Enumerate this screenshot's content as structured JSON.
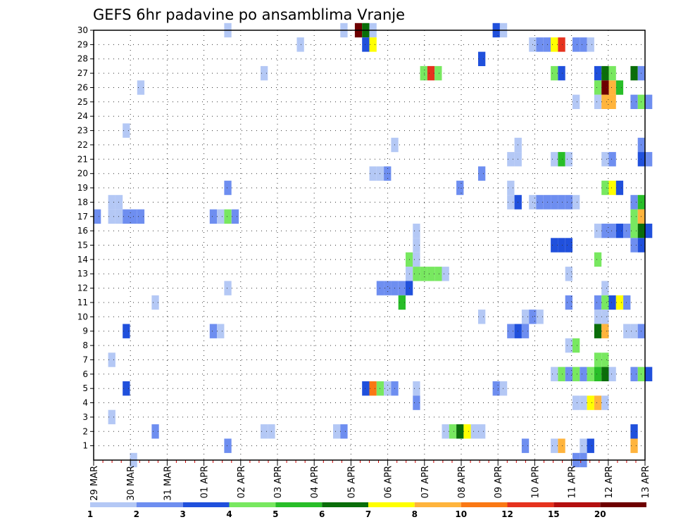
{
  "chart_data": {
    "type": "heatmap",
    "title": "GEFS 6hr padavine po ansamblima Vranje",
    "y_categories": [
      "1",
      "2",
      "3",
      "4",
      "5",
      "6",
      "7",
      "8",
      "9",
      "10",
      "11",
      "12",
      "13",
      "14",
      "15",
      "16",
      "17",
      "18",
      "19",
      "20",
      "21",
      "22",
      "23",
      "24",
      "25",
      "26",
      "27",
      "28",
      "29",
      "30"
    ],
    "x_tick_labels": [
      "29 MAR",
      "30 MAR",
      "31 MAR",
      "01 APR",
      "02 APR",
      "03 APR",
      "04 APR",
      "05 APR",
      "06 APR",
      "07 APR",
      "08 APR",
      "09 APR",
      "10 APR",
      "11 APR",
      "12 APR",
      "13 APR"
    ],
    "x_steps_per_day": 4,
    "grid": true,
    "color_scale": {
      "levels": [
        "1",
        "2",
        "3",
        "4",
        "5",
        "6",
        "7",
        "8",
        "10",
        "12",
        "15",
        "20"
      ],
      "colors": [
        "#b4c8f5",
        "#6e8ef0",
        "#2050dc",
        "#78e860",
        "#28be28",
        "#0a6e0a",
        "#ffff00",
        "#ffb43c",
        "#fa7814",
        "#e6321e",
        "#b40f0f",
        "#6e0000"
      ],
      "placement": "bottom"
    },
    "cells": [
      {
        "m": 30,
        "x": 13.6,
        "c": 1
      },
      {
        "m": 30,
        "x": 17.2,
        "c": 12
      },
      {
        "m": 30,
        "x": 17.4,
        "c": 6
      },
      {
        "m": 30,
        "x": 17.6,
        "c": 1
      },
      {
        "m": 30,
        "x": 21.0,
        "c": 3
      },
      {
        "m": 30,
        "x": 21.2,
        "c": 1
      },
      {
        "m": 30,
        "x": 16.8,
        "c": 1
      },
      {
        "m": 29,
        "x": 15.6,
        "c": 1
      },
      {
        "m": 29,
        "x": 17.4,
        "c": 3
      },
      {
        "m": 29,
        "x": 17.6,
        "c": 7
      },
      {
        "m": 29,
        "x": 22.0,
        "c": 1
      },
      {
        "m": 29,
        "x": 22.2,
        "c": 2
      },
      {
        "m": 29,
        "x": 22.4,
        "c": 2
      },
      {
        "m": 29,
        "x": 22.6,
        "c": 7
      },
      {
        "m": 29,
        "x": 22.8,
        "c": 10
      },
      {
        "m": 29,
        "x": 23.2,
        "c": 2
      },
      {
        "m": 29,
        "x": 23.4,
        "c": 2
      },
      {
        "m": 29,
        "x": 23.6,
        "c": 1
      },
      {
        "m": 28,
        "x": 20.6,
        "c": 3
      },
      {
        "m": 27,
        "x": 14.6,
        "c": 1
      },
      {
        "m": 27,
        "x": 19.0,
        "c": 4
      },
      {
        "m": 27,
        "x": 19.2,
        "c": 10
      },
      {
        "m": 27,
        "x": 19.4,
        "c": 4
      },
      {
        "m": 27,
        "x": 22.6,
        "c": 4
      },
      {
        "m": 27,
        "x": 22.8,
        "c": 3
      },
      {
        "m": 27,
        "x": 23.8,
        "c": 3
      },
      {
        "m": 27,
        "x": 24.0,
        "c": 6
      },
      {
        "m": 27,
        "x": 24.2,
        "c": 4
      },
      {
        "m": 27,
        "x": 24.8,
        "c": 6
      },
      {
        "m": 27,
        "x": 25.0,
        "c": 2
      },
      {
        "m": 26,
        "x": 11.2,
        "c": 1
      },
      {
        "m": 26,
        "x": 23.8,
        "c": 4
      },
      {
        "m": 26,
        "x": 24.0,
        "c": 12
      },
      {
        "m": 26,
        "x": 24.2,
        "c": 8
      },
      {
        "m": 26,
        "x": 24.4,
        "c": 5
      },
      {
        "m": 25,
        "x": 23.2,
        "c": 1
      },
      {
        "m": 25,
        "x": 23.8,
        "c": 1
      },
      {
        "m": 25,
        "x": 24.0,
        "c": 8
      },
      {
        "m": 25,
        "x": 24.2,
        "c": 8
      },
      {
        "m": 25,
        "x": 24.8,
        "c": 2
      },
      {
        "m": 25,
        "x": 25.0,
        "c": 4
      },
      {
        "m": 25,
        "x": 25.2,
        "c": 2
      },
      {
        "m": 23,
        "x": 10.8,
        "c": 1
      },
      {
        "m": 22,
        "x": 18.2,
        "c": 1
      },
      {
        "m": 22,
        "x": 21.6,
        "c": 1
      },
      {
        "m": 22,
        "x": 25.0,
        "c": 2
      },
      {
        "m": 21,
        "x": 21.4,
        "c": 1
      },
      {
        "m": 21,
        "x": 21.6,
        "c": 1
      },
      {
        "m": 21,
        "x": 22.6,
        "c": 1
      },
      {
        "m": 21,
        "x": 22.8,
        "c": 5
      },
      {
        "m": 21,
        "x": 23.0,
        "c": 1
      },
      {
        "m": 21,
        "x": 24.0,
        "c": 1
      },
      {
        "m": 21,
        "x": 24.2,
        "c": 2
      },
      {
        "m": 21,
        "x": 25.0,
        "c": 3
      },
      {
        "m": 21,
        "x": 25.2,
        "c": 2
      },
      {
        "m": 20,
        "x": 17.6,
        "c": 1
      },
      {
        "m": 20,
        "x": 17.8,
        "c": 1
      },
      {
        "m": 20,
        "x": 18.0,
        "c": 2
      },
      {
        "m": 20,
        "x": 20.6,
        "c": 2
      },
      {
        "m": 19,
        "x": 13.6,
        "c": 2
      },
      {
        "m": 19,
        "x": 20.0,
        "c": 2
      },
      {
        "m": 19,
        "x": 21.4,
        "c": 1
      },
      {
        "m": 19,
        "x": 24.0,
        "c": 4
      },
      {
        "m": 19,
        "x": 24.2,
        "c": 7
      },
      {
        "m": 19,
        "x": 24.4,
        "c": 3
      },
      {
        "m": 18,
        "x": 10.4,
        "c": 1
      },
      {
        "m": 18,
        "x": 10.6,
        "c": 1
      },
      {
        "m": 18,
        "x": 21.4,
        "c": 1
      },
      {
        "m": 18,
        "x": 21.6,
        "c": 3
      },
      {
        "m": 18,
        "x": 22.0,
        "c": 1
      },
      {
        "m": 18,
        "x": 22.2,
        "c": 2
      },
      {
        "m": 18,
        "x": 22.4,
        "c": 2
      },
      {
        "m": 18,
        "x": 22.6,
        "c": 2
      },
      {
        "m": 18,
        "x": 22.8,
        "c": 2
      },
      {
        "m": 18,
        "x": 23.0,
        "c": 2
      },
      {
        "m": 18,
        "x": 23.2,
        "c": 1
      },
      {
        "m": 18,
        "x": 24.8,
        "c": 2
      },
      {
        "m": 18,
        "x": 25.0,
        "c": 5
      },
      {
        "m": 17,
        "x": 10.0,
        "c": 2
      },
      {
        "m": 17,
        "x": 10.4,
        "c": 1
      },
      {
        "m": 17,
        "x": 10.6,
        "c": 1
      },
      {
        "m": 17,
        "x": 10.8,
        "c": 2
      },
      {
        "m": 17,
        "x": 11.0,
        "c": 2
      },
      {
        "m": 17,
        "x": 11.2,
        "c": 2
      },
      {
        "m": 17,
        "x": 13.2,
        "c": 2
      },
      {
        "m": 17,
        "x": 13.4,
        "c": 1
      },
      {
        "m": 17,
        "x": 13.6,
        "c": 4
      },
      {
        "m": 17,
        "x": 13.8,
        "c": 2
      },
      {
        "m": 17,
        "x": 24.8,
        "c": 4
      },
      {
        "m": 17,
        "x": 25.0,
        "c": 8
      },
      {
        "m": 16,
        "x": 18.8,
        "c": 1
      },
      {
        "m": 16,
        "x": 23.8,
        "c": 1
      },
      {
        "m": 16,
        "x": 24.0,
        "c": 2
      },
      {
        "m": 16,
        "x": 24.2,
        "c": 2
      },
      {
        "m": 16,
        "x": 24.4,
        "c": 3
      },
      {
        "m": 16,
        "x": 24.6,
        "c": 2
      },
      {
        "m": 16,
        "x": 24.8,
        "c": 4
      },
      {
        "m": 16,
        "x": 25.0,
        "c": 6
      },
      {
        "m": 16,
        "x": 25.2,
        "c": 3
      },
      {
        "m": 15,
        "x": 18.8,
        "c": 1
      },
      {
        "m": 15,
        "x": 22.6,
        "c": 3
      },
      {
        "m": 15,
        "x": 22.8,
        "c": 3
      },
      {
        "m": 15,
        "x": 23.0,
        "c": 3
      },
      {
        "m": 15,
        "x": 24.8,
        "c": 2
      },
      {
        "m": 15,
        "x": 25.0,
        "c": 3
      },
      {
        "m": 14,
        "x": 18.6,
        "c": 4
      },
      {
        "m": 14,
        "x": 18.8,
        "c": 1
      },
      {
        "m": 14,
        "x": 23.8,
        "c": 4
      },
      {
        "m": 13,
        "x": 18.6,
        "c": 1
      },
      {
        "m": 13,
        "x": 18.8,
        "c": 4
      },
      {
        "m": 13,
        "x": 19.0,
        "c": 4
      },
      {
        "m": 13,
        "x": 19.2,
        "c": 4
      },
      {
        "m": 13,
        "x": 19.4,
        "c": 4
      },
      {
        "m": 13,
        "x": 19.6,
        "c": 1
      },
      {
        "m": 13,
        "x": 23.0,
        "c": 1
      },
      {
        "m": 12,
        "x": 13.6,
        "c": 1
      },
      {
        "m": 12,
        "x": 17.8,
        "c": 2
      },
      {
        "m": 12,
        "x": 18.0,
        "c": 2
      },
      {
        "m": 12,
        "x": 18.2,
        "c": 2
      },
      {
        "m": 12,
        "x": 18.4,
        "c": 2
      },
      {
        "m": 12,
        "x": 18.6,
        "c": 3
      },
      {
        "m": 12,
        "x": 24.0,
        "c": 1
      },
      {
        "m": 11,
        "x": 11.6,
        "c": 1
      },
      {
        "m": 11,
        "x": 18.4,
        "c": 5
      },
      {
        "m": 11,
        "x": 23.0,
        "c": 2
      },
      {
        "m": 11,
        "x": 23.8,
        "c": 2
      },
      {
        "m": 11,
        "x": 24.0,
        "c": 4
      },
      {
        "m": 11,
        "x": 24.2,
        "c": 3
      },
      {
        "m": 11,
        "x": 24.4,
        "c": 7
      },
      {
        "m": 11,
        "x": 24.6,
        "c": 2
      },
      {
        "m": 10,
        "x": 20.6,
        "c": 1
      },
      {
        "m": 10,
        "x": 21.8,
        "c": 1
      },
      {
        "m": 10,
        "x": 22.0,
        "c": 2
      },
      {
        "m": 10,
        "x": 22.2,
        "c": 1
      },
      {
        "m": 10,
        "x": 23.8,
        "c": 1
      },
      {
        "m": 10,
        "x": 24.0,
        "c": 1
      },
      {
        "m": 9,
        "x": 10.8,
        "c": 3
      },
      {
        "m": 9,
        "x": 13.2,
        "c": 2
      },
      {
        "m": 9,
        "x": 13.4,
        "c": 1
      },
      {
        "m": 9,
        "x": 21.4,
        "c": 2
      },
      {
        "m": 9,
        "x": 21.6,
        "c": 3
      },
      {
        "m": 9,
        "x": 21.8,
        "c": 2
      },
      {
        "m": 9,
        "x": 23.8,
        "c": 6
      },
      {
        "m": 9,
        "x": 24.0,
        "c": 8
      },
      {
        "m": 9,
        "x": 24.6,
        "c": 1
      },
      {
        "m": 9,
        "x": 24.8,
        "c": 1
      },
      {
        "m": 9,
        "x": 25.0,
        "c": 2
      },
      {
        "m": 8,
        "x": 23.0,
        "c": 1
      },
      {
        "m": 8,
        "x": 23.2,
        "c": 4
      },
      {
        "m": 7,
        "x": 10.4,
        "c": 1
      },
      {
        "m": 7,
        "x": 23.8,
        "c": 4
      },
      {
        "m": 7,
        "x": 24.0,
        "c": 4
      },
      {
        "m": 6,
        "x": 22.6,
        "c": 1
      },
      {
        "m": 6,
        "x": 22.8,
        "c": 4
      },
      {
        "m": 6,
        "x": 23.0,
        "c": 2
      },
      {
        "m": 6,
        "x": 23.2,
        "c": 4
      },
      {
        "m": 6,
        "x": 23.4,
        "c": 2
      },
      {
        "m": 6,
        "x": 23.6,
        "c": 4
      },
      {
        "m": 6,
        "x": 23.8,
        "c": 5
      },
      {
        "m": 6,
        "x": 24.0,
        "c": 6
      },
      {
        "m": 6,
        "x": 24.2,
        "c": 1
      },
      {
        "m": 6,
        "x": 24.8,
        "c": 2
      },
      {
        "m": 6,
        "x": 25.0,
        "c": 4
      },
      {
        "m": 6,
        "x": 25.2,
        "c": 3
      },
      {
        "m": 5,
        "x": 10.8,
        "c": 3
      },
      {
        "m": 5,
        "x": 17.4,
        "c": 3
      },
      {
        "m": 5,
        "x": 17.6,
        "c": 9
      },
      {
        "m": 5,
        "x": 17.8,
        "c": 4
      },
      {
        "m": 5,
        "x": 18.0,
        "c": 1
      },
      {
        "m": 5,
        "x": 18.2,
        "c": 2
      },
      {
        "m": 5,
        "x": 18.8,
        "c": 1
      },
      {
        "m": 5,
        "x": 21.0,
        "c": 2
      },
      {
        "m": 5,
        "x": 21.2,
        "c": 1
      },
      {
        "m": 4,
        "x": 18.8,
        "c": 2
      },
      {
        "m": 4,
        "x": 23.2,
        "c": 1
      },
      {
        "m": 4,
        "x": 23.4,
        "c": 1
      },
      {
        "m": 4,
        "x": 23.6,
        "c": 7
      },
      {
        "m": 4,
        "x": 23.8,
        "c": 8
      },
      {
        "m": 4,
        "x": 24.0,
        "c": 1
      },
      {
        "m": 3,
        "x": 10.4,
        "c": 1
      },
      {
        "m": 2,
        "x": 11.6,
        "c": 2
      },
      {
        "m": 2,
        "x": 14.6,
        "c": 1
      },
      {
        "m": 2,
        "x": 14.8,
        "c": 1
      },
      {
        "m": 2,
        "x": 16.6,
        "c": 1
      },
      {
        "m": 2,
        "x": 16.8,
        "c": 2
      },
      {
        "m": 2,
        "x": 19.6,
        "c": 1
      },
      {
        "m": 2,
        "x": 19.8,
        "c": 4
      },
      {
        "m": 2,
        "x": 20.0,
        "c": 6
      },
      {
        "m": 2,
        "x": 20.2,
        "c": 7
      },
      {
        "m": 2,
        "x": 20.4,
        "c": 1
      },
      {
        "m": 2,
        "x": 20.6,
        "c": 1
      },
      {
        "m": 2,
        "x": 24.8,
        "c": 3
      },
      {
        "m": 1,
        "x": 13.6,
        "c": 2
      },
      {
        "m": 1,
        "x": 21.8,
        "c": 2
      },
      {
        "m": 1,
        "x": 22.6,
        "c": 1
      },
      {
        "m": 1,
        "x": 22.8,
        "c": 8
      },
      {
        "m": 1,
        "x": 23.4,
        "c": 1
      },
      {
        "m": 1,
        "x": 23.6,
        "c": 3
      },
      {
        "m": 1,
        "x": 24.8,
        "c": 8
      },
      {
        "m": 0,
        "x": 11.0,
        "c": 1
      },
      {
        "m": 0,
        "x": 23.2,
        "c": 2
      },
      {
        "m": 0,
        "x": 23.4,
        "c": 2
      }
    ]
  }
}
